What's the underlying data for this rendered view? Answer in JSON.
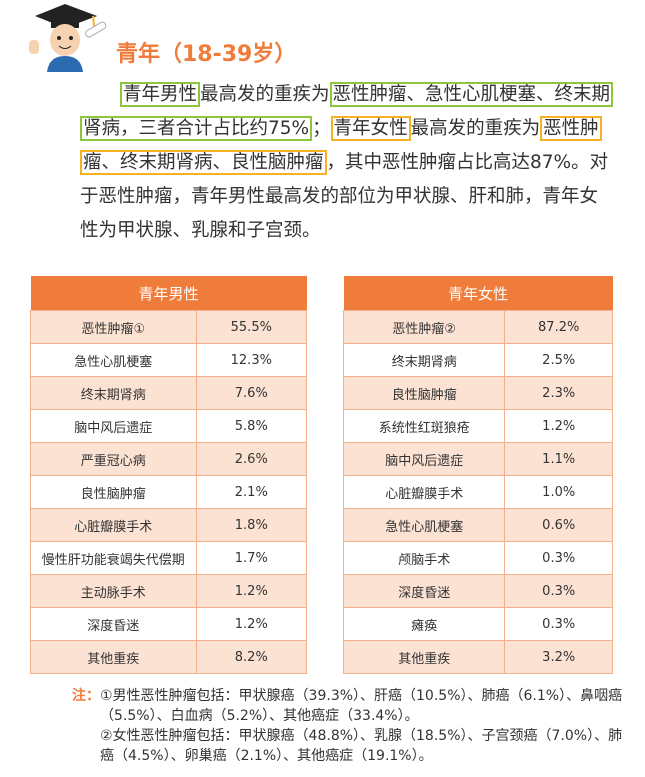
{
  "header": {
    "title": "青年（18-39岁）"
  },
  "paragraph": [
    {
      "text": "青年男性",
      "highlight": "#8cc63f"
    },
    {
      "text": "最高发的重疾为"
    },
    {
      "text": "恶性肿瘤、急性心肌梗塞、终末期肾病，三者合计占比约75%",
      "highlight": "#8cc63f"
    },
    {
      "text": "；"
    },
    {
      "text": "青年女性",
      "highlight": "#f5b324"
    },
    {
      "text": "最高发的重疾为"
    },
    {
      "text": "恶性肿瘤、终末期肾病、良性脑肿瘤",
      "highlight": "#f5b324"
    },
    {
      "text": "，其中恶性肿瘤占比高达87%。对于恶性肿瘤，青年男性最高发的部位为甲状腺、肝和肺，青年女性为甲状腺、乳腺和子宫颈。"
    }
  ],
  "tables": [
    {
      "header": "青年男性",
      "rows": [
        [
          "恶性肿瘤①",
          "55.5%"
        ],
        [
          "急性心肌梗塞",
          "12.3%"
        ],
        [
          "终末期肾病",
          "7.6%"
        ],
        [
          "脑中风后遗症",
          "5.8%"
        ],
        [
          "严重冠心病",
          "2.6%"
        ],
        [
          "良性脑肿瘤",
          "2.1%"
        ],
        [
          "心脏瓣膜手术",
          "1.8%"
        ],
        [
          "慢性肝功能衰竭失代偿期",
          "1.7%"
        ],
        [
          "主动脉手术",
          "1.2%"
        ],
        [
          "深度昏迷",
          "1.2%"
        ],
        [
          "其他重疾",
          "8.2%"
        ]
      ]
    },
    {
      "header": "青年女性",
      "rows": [
        [
          "恶性肿瘤②",
          "87.2%"
        ],
        [
          "终末期肾病",
          "2.5%"
        ],
        [
          "良性脑肿瘤",
          "2.3%"
        ],
        [
          "系统性红斑狼疮",
          "1.2%"
        ],
        [
          "脑中风后遗症",
          "1.1%"
        ],
        [
          "心脏瓣膜手术",
          "1.0%"
        ],
        [
          "急性心肌梗塞",
          "0.6%"
        ],
        [
          "颅脑手术",
          "0.3%"
        ],
        [
          "深度昏迷",
          "0.3%"
        ],
        [
          "瘫痪",
          "0.3%"
        ],
        [
          "其他重疾",
          "3.2%"
        ]
      ]
    }
  ],
  "notes": {
    "label": "注：",
    "items": [
      "①男性恶性肿瘤包括：甲状腺癌（39.3%）、肝癌（10.5%）、肺癌（6.1%）、鼻咽癌（5.5%）、白血病（5.2%）、其他癌症（33.4%）。",
      "②女性恶性肿瘤包括：甲状腺癌（48.8%）、乳腺（18.5%）、子宫颈癌（7.0%）、肺癌（4.5%）、卵巢癌（2.1%）、其他癌症（19.1%）。"
    ]
  }
}
